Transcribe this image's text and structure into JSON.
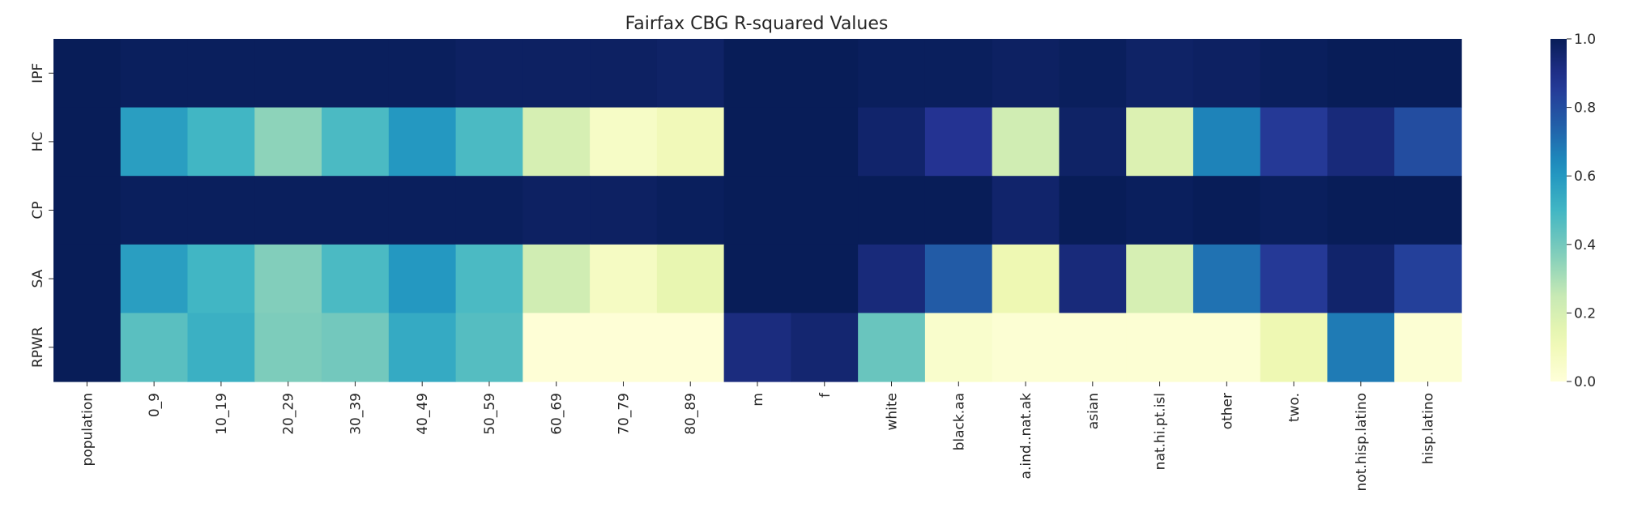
{
  "chart_data": {
    "type": "heatmap",
    "title": "Fairfax CBG R-squared Values",
    "xlabel": "",
    "ylabel": "",
    "x_labels": [
      "population",
      "0_9",
      "10_19",
      "20_29",
      "30_39",
      "40_49",
      "50_59",
      "60_69",
      "70_79",
      "80_89",
      "m",
      "f",
      "white",
      "black.aa",
      "a.ind..nat.ak",
      "asian",
      "nat.hi.pt.isl",
      "other",
      "two.",
      "not.hisp.latino",
      "hisp.latino"
    ],
    "y_labels": [
      "IPF",
      "HC",
      "CP",
      "SA",
      "RPWR"
    ],
    "values": [
      [
        1.0,
        0.99,
        0.99,
        0.99,
        0.99,
        0.99,
        0.98,
        0.98,
        0.98,
        0.97,
        1.0,
        1.0,
        0.99,
        0.99,
        0.98,
        0.99,
        0.97,
        0.98,
        0.99,
        1.0,
        1.0
      ],
      [
        1.0,
        0.58,
        0.5,
        0.35,
        0.48,
        0.6,
        0.48,
        0.2,
        0.06,
        0.1,
        1.0,
        1.0,
        0.96,
        0.88,
        0.22,
        0.97,
        0.18,
        0.66,
        0.86,
        0.93,
        0.8
      ],
      [
        1.0,
        0.99,
        0.99,
        0.99,
        0.99,
        0.99,
        0.99,
        0.98,
        0.98,
        0.99,
        1.0,
        1.0,
        1.0,
        1.0,
        0.96,
        1.0,
        0.99,
        1.0,
        0.99,
        1.0,
        1.0
      ],
      [
        1.0,
        0.58,
        0.5,
        0.37,
        0.48,
        0.6,
        0.48,
        0.22,
        0.07,
        0.14,
        1.0,
        1.0,
        0.93,
        0.76,
        0.12,
        0.93,
        0.2,
        0.7,
        0.86,
        0.96,
        0.84
      ],
      [
        1.0,
        0.45,
        0.52,
        0.38,
        0.4,
        0.54,
        0.46,
        0.01,
        0.01,
        0.01,
        0.92,
        0.95,
        0.42,
        0.04,
        0.02,
        0.02,
        0.02,
        0.02,
        0.12,
        0.68,
        0.02
      ]
    ],
    "colorbar": {
      "min": 0.0,
      "max": 1.0,
      "tick_labels": [
        "0.0",
        "0.2",
        "0.4",
        "0.6",
        "0.8",
        "1.0"
      ],
      "tick_values": [
        0.0,
        0.2,
        0.4,
        0.6,
        0.8,
        1.0
      ]
    },
    "colormap": "YlGnBu",
    "grid": false,
    "legend": "colorbar-right"
  }
}
